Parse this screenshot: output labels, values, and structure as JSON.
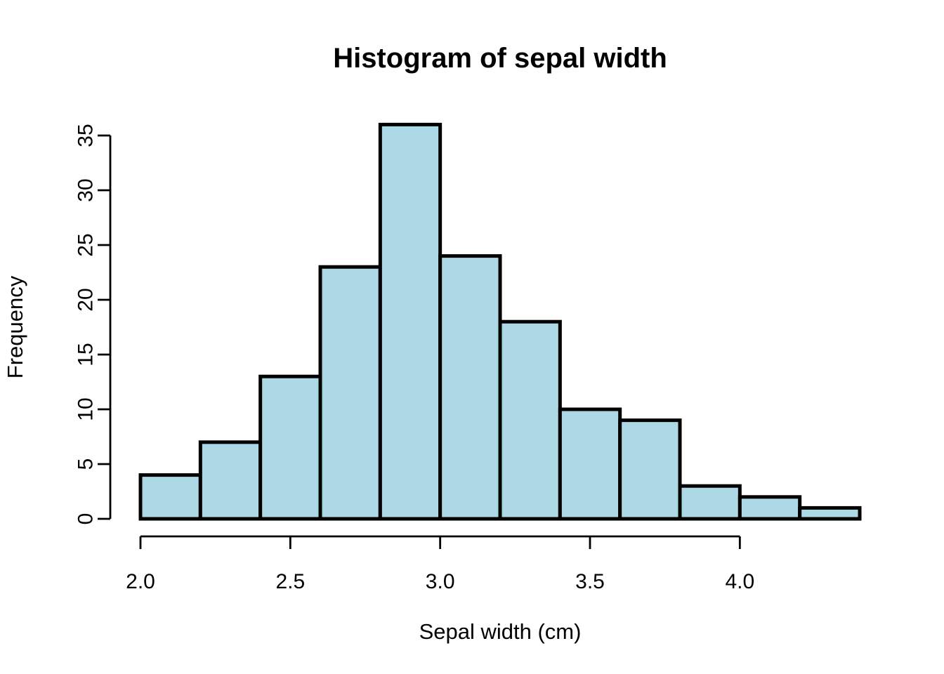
{
  "figure": {
    "background": "#FFFFFF"
  },
  "chart_data": {
    "type": "bar",
    "subtype": "histogram",
    "title": "Histogram of sepal width",
    "xlabel": "Sepal width (cm)",
    "ylabel": "Frequency",
    "bin_edges": [
      2.0,
      2.2,
      2.4,
      2.6,
      2.8,
      3.0,
      3.2,
      3.4,
      3.6,
      3.8,
      4.0,
      4.2,
      4.4
    ],
    "counts": [
      4,
      7,
      13,
      23,
      36,
      24,
      18,
      10,
      9,
      3,
      2,
      1
    ],
    "xlim": [
      2.0,
      4.4
    ],
    "ylim": [
      0,
      35
    ],
    "x_ticks": [
      {
        "value": 2.0,
        "label": "2.0"
      },
      {
        "value": 2.5,
        "label": "2.5"
      },
      {
        "value": 3.0,
        "label": "3.0"
      },
      {
        "value": 3.5,
        "label": "3.5"
      },
      {
        "value": 4.0,
        "label": "4.0"
      }
    ],
    "y_ticks": [
      {
        "value": 0,
        "label": "0"
      },
      {
        "value": 5,
        "label": "5"
      },
      {
        "value": 10,
        "label": "10"
      },
      {
        "value": 15,
        "label": "15"
      },
      {
        "value": 20,
        "label": "20"
      },
      {
        "value": 25,
        "label": "25"
      },
      {
        "value": 30,
        "label": "30"
      },
      {
        "value": 35,
        "label": "35"
      }
    ],
    "grid": false,
    "legend": null,
    "colors": {
      "bar_fill": "#ADD8E6",
      "bar_stroke": "#000000",
      "axis": "#000000",
      "text": "#000000"
    }
  }
}
